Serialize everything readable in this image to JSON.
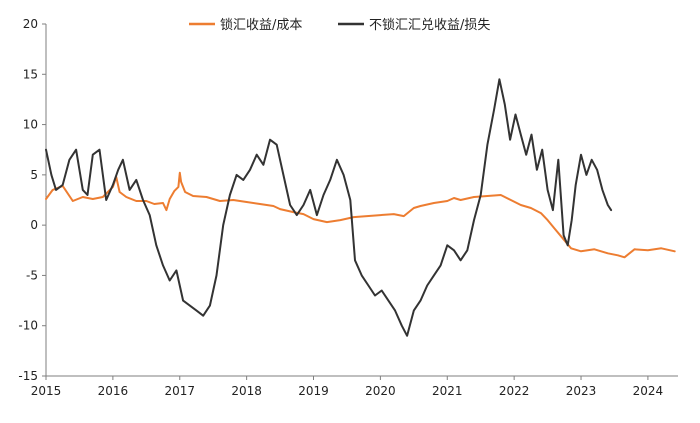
{
  "chart_data": {
    "type": "line",
    "title": "",
    "xlabel": "",
    "ylabel": "",
    "xlim": [
      2015,
      2024.45
    ],
    "ylim": [
      -15,
      20
    ],
    "x_ticks": [
      "2015",
      "2016",
      "2017",
      "2018",
      "2019",
      "2020",
      "2021",
      "2022",
      "2023",
      "2024"
    ],
    "y_ticks": [
      "-15",
      "-10",
      "-5",
      "0",
      "5",
      "10",
      "15",
      "20"
    ],
    "grid": false,
    "legend": "top-center",
    "series": [
      {
        "name": "锁汇收益/成本",
        "color": "#ED7D31",
        "x": [
          2015.0,
          2015.1,
          2015.25,
          2015.4,
          2015.55,
          2015.7,
          2015.85,
          2016.0,
          2016.05,
          2016.1,
          2016.2,
          2016.35,
          2016.5,
          2016.62,
          2016.75,
          2016.8,
          2016.85,
          2016.92,
          2016.98,
          2017.0,
          2017.02,
          2017.08,
          2017.2,
          2017.4,
          2017.6,
          2017.8,
          2018.0,
          2018.2,
          2018.4,
          2018.5,
          2018.7,
          2018.85,
          2019.0,
          2019.2,
          2019.4,
          2019.6,
          2019.8,
          2020.0,
          2020.2,
          2020.35,
          2020.5,
          2020.6,
          2020.8,
          2021.0,
          2021.1,
          2021.2,
          2021.4,
          2021.6,
          2021.8,
          2021.95,
          2022.1,
          2022.25,
          2022.4,
          2022.5,
          2022.6,
          2022.75,
          2022.85,
          2023.0,
          2023.2,
          2023.4,
          2023.55,
          2023.65,
          2023.8,
          2024.0,
          2024.2,
          2024.4
        ],
        "y": [
          2.6,
          3.5,
          3.9,
          2.4,
          2.8,
          2.6,
          2.8,
          3.8,
          4.8,
          3.3,
          2.8,
          2.4,
          2.4,
          2.1,
          2.2,
          1.5,
          2.6,
          3.4,
          3.8,
          5.2,
          4.3,
          3.3,
          2.9,
          2.8,
          2.4,
          2.5,
          2.3,
          2.1,
          1.9,
          1.6,
          1.3,
          1.1,
          0.6,
          0.3,
          0.5,
          0.8,
          0.9,
          1.0,
          1.1,
          0.9,
          1.7,
          1.9,
          2.2,
          2.4,
          2.7,
          2.5,
          2.8,
          2.9,
          3.0,
          2.5,
          2.0,
          1.7,
          1.2,
          0.5,
          -0.3,
          -1.5,
          -2.3,
          -2.6,
          -2.4,
          -2.8,
          -3.0,
          -3.2,
          -2.4,
          -2.5,
          -2.3,
          -2.6
        ]
      },
      {
        "name": "不锁汇汇兑收益/损失",
        "color": "#333333",
        "x": [
          2015.0,
          2015.08,
          2015.15,
          2015.25,
          2015.35,
          2015.45,
          2015.55,
          2015.62,
          2015.7,
          2015.8,
          2015.9,
          2016.0,
          2016.08,
          2016.15,
          2016.25,
          2016.35,
          2016.45,
          2016.55,
          2016.65,
          2016.75,
          2016.85,
          2016.95,
          2017.05,
          2017.15,
          2017.25,
          2017.35,
          2017.45,
          2017.55,
          2017.65,
          2017.75,
          2017.85,
          2017.95,
          2018.05,
          2018.15,
          2018.25,
          2018.35,
          2018.45,
          2018.55,
          2018.65,
          2018.75,
          2018.85,
          2018.95,
          2019.05,
          2019.15,
          2019.25,
          2019.35,
          2019.45,
          2019.55,
          2019.62,
          2019.72,
          2019.82,
          2019.92,
          2020.02,
          2020.12,
          2020.22,
          2020.32,
          2020.4,
          2020.5,
          2020.6,
          2020.7,
          2020.8,
          2020.9,
          2021.0,
          2021.1,
          2021.2,
          2021.3,
          2021.4,
          2021.5,
          2021.6,
          2021.7,
          2021.78,
          2021.86,
          2021.94,
          2022.02,
          2022.1,
          2022.18,
          2022.26,
          2022.34,
          2022.42,
          2022.5,
          2022.58,
          2022.66,
          2022.74,
          2022.8,
          2022.86,
          2022.92,
          2023.0,
          2023.08,
          2023.16,
          2023.24,
          2023.32,
          2023.4,
          2023.45
        ],
        "y": [
          7.5,
          5.0,
          3.5,
          4.0,
          6.5,
          7.5,
          3.5,
          3.0,
          7.0,
          7.5,
          2.5,
          4.0,
          5.5,
          6.5,
          3.5,
          4.5,
          2.5,
          1.0,
          -2.0,
          -4.0,
          -5.5,
          -4.5,
          -7.5,
          -8.0,
          -8.5,
          -9.0,
          -8.0,
          -5.0,
          0.0,
          3.0,
          5.0,
          4.5,
          5.5,
          7.0,
          6.0,
          8.5,
          8.0,
          5.0,
          2.0,
          1.0,
          2.0,
          3.5,
          1.0,
          3.0,
          4.5,
          6.5,
          5.0,
          2.5,
          -3.5,
          -5.0,
          -6.0,
          -7.0,
          -6.5,
          -7.5,
          -8.5,
          -10.0,
          -11.0,
          -8.5,
          -7.5,
          -6.0,
          -5.0,
          -4.0,
          -2.0,
          -2.5,
          -3.5,
          -2.5,
          0.5,
          3.0,
          8.0,
          11.5,
          14.5,
          12.0,
          8.5,
          11.0,
          9.0,
          7.0,
          9.0,
          5.5,
          7.5,
          3.5,
          1.5,
          6.5,
          -1.0,
          -2.0,
          0.5,
          4.0,
          7.0,
          5.0,
          6.5,
          5.5,
          3.5,
          2.0,
          1.5
        ]
      }
    ]
  }
}
